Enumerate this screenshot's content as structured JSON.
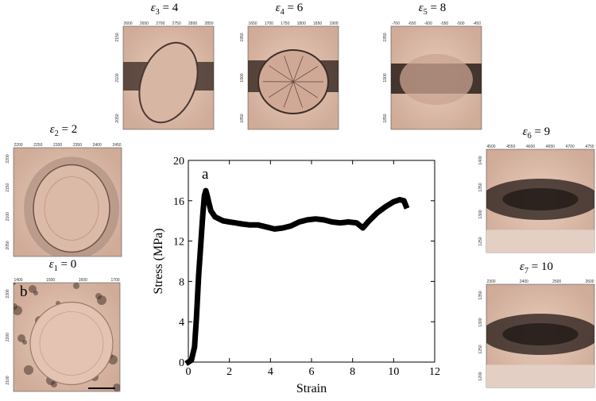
{
  "panel_letter_b": "b",
  "panels": [
    {
      "id": "e1",
      "symbol": "ε",
      "sub": "1",
      "value": "0",
      "ticks_x": [
        "1400",
        "1500",
        "1600",
        "1700"
      ],
      "ticks_y": [
        "2300",
        "2200",
        "2100"
      ],
      "kind": "circle"
    },
    {
      "id": "e2",
      "symbol": "ε",
      "sub": "2",
      "value": "2",
      "ticks_x": [
        "2200",
        "2250",
        "2300",
        "2350",
        "2400",
        "2450"
      ],
      "ticks_y": [
        "2200",
        "2150",
        "2100",
        "2050"
      ],
      "kind": "oval"
    },
    {
      "id": "e3",
      "symbol": "ε",
      "sub": "3",
      "value": "4",
      "ticks_x": [
        "2600",
        "2650",
        "2700",
        "2750",
        "2800",
        "2850"
      ],
      "ticks_y": [
        "2150",
        "2100",
        "2050"
      ],
      "kind": "tilted"
    },
    {
      "id": "e4",
      "symbol": "ε",
      "sub": "4",
      "value": "6",
      "ticks_x": [
        "1650",
        "1700",
        "1750",
        "1800",
        "1850",
        "1900"
      ],
      "ticks_y": [
        "1950",
        "1900",
        "1850"
      ],
      "kind": "squashed"
    },
    {
      "id": "e5",
      "symbol": "ε",
      "sub": "5",
      "value": "8",
      "ticks_x": [
        "-700",
        "-650",
        "-600",
        "-550",
        "-500",
        "-450"
      ],
      "ticks_y": [
        "1950",
        "1900",
        "1850"
      ],
      "kind": "flat"
    },
    {
      "id": "e6",
      "symbol": "ε",
      "sub": "6",
      "value": "9",
      "ticks_x": [
        "4500",
        "4550",
        "4600",
        "4650",
        "4700",
        "4750"
      ],
      "ticks_y": [
        "1400",
        "1350",
        "1300",
        "1250"
      ],
      "kind": "band"
    },
    {
      "id": "e7",
      "symbol": "ε",
      "sub": "7",
      "value": "10",
      "ticks_x": [
        "2300",
        "2400",
        "2500",
        "2600"
      ],
      "ticks_y": [
        "1350",
        "1300",
        "1250",
        "1200"
      ],
      "kind": "band"
    }
  ],
  "chart_data": {
    "type": "line",
    "panel_letter": "a",
    "xlabel": "Strain",
    "ylabel": "Stress (MPa)",
    "xlim": [
      0,
      12
    ],
    "ylim": [
      0,
      20
    ],
    "xticks": [
      0,
      2,
      4,
      6,
      8,
      10,
      12
    ],
    "yticks": [
      0,
      4,
      8,
      12,
      16,
      20
    ],
    "grid": false,
    "series": [
      {
        "color": "#000000",
        "x": [
          0.0,
          0.15,
          0.3,
          0.4,
          0.5,
          0.6,
          0.7,
          0.78,
          0.85,
          0.92,
          1.0,
          1.1,
          1.3,
          1.5,
          1.7,
          2.0,
          2.3,
          2.6,
          3.0,
          3.4,
          3.8,
          4.2,
          4.6,
          5.0,
          5.4,
          5.8,
          6.2,
          6.6,
          7.0,
          7.4,
          7.8,
          8.2,
          8.5,
          8.8,
          9.2,
          9.6,
          10.0,
          10.3,
          10.5,
          10.6
        ],
        "y": [
          0.0,
          0.2,
          1.5,
          4.5,
          8.5,
          11.5,
          14.5,
          16.5,
          17.0,
          16.5,
          15.8,
          15.0,
          14.4,
          14.2,
          14.0,
          13.9,
          13.8,
          13.7,
          13.6,
          13.6,
          13.4,
          13.2,
          13.3,
          13.5,
          13.9,
          14.1,
          14.2,
          14.1,
          13.9,
          13.8,
          13.9,
          13.8,
          13.3,
          14.0,
          14.8,
          15.4,
          15.9,
          16.1,
          16.0,
          15.5
        ]
      }
    ]
  }
}
